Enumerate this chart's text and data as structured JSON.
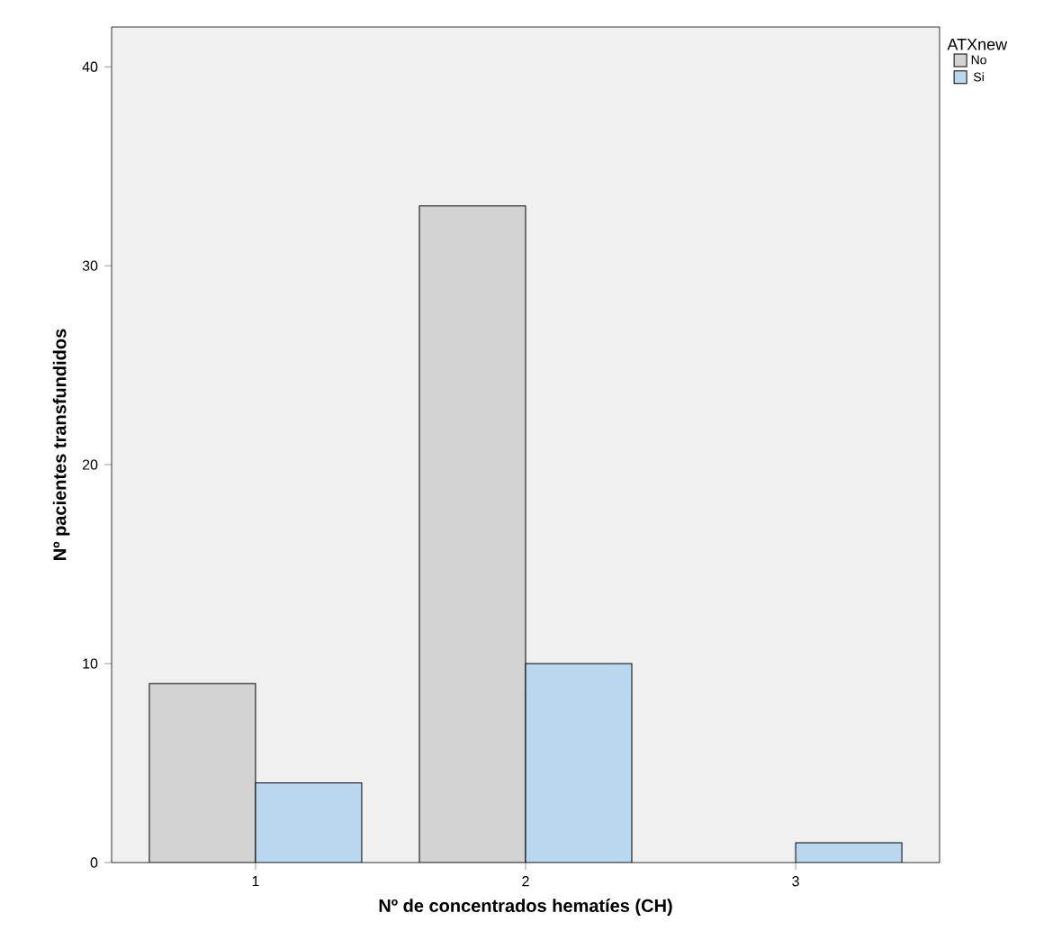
{
  "chart_data": {
    "type": "bar",
    "xlabel": "Nº de concentrados hematíes (CH)",
    "ylabel": "Nº pacientes transfundidos",
    "legend_title": "ATXnew",
    "categories": [
      "1",
      "2",
      "3"
    ],
    "series": [
      {
        "name": "No",
        "color": "#d3d3d3",
        "values": [
          9,
          33,
          null
        ]
      },
      {
        "name": "Si",
        "color": "#b9d7ef",
        "values": [
          4,
          10,
          1
        ]
      }
    ],
    "ylim": [
      0,
      42
    ],
    "yticks": [
      0,
      10,
      20,
      30,
      40
    ],
    "grid": false,
    "legend": "top right"
  }
}
